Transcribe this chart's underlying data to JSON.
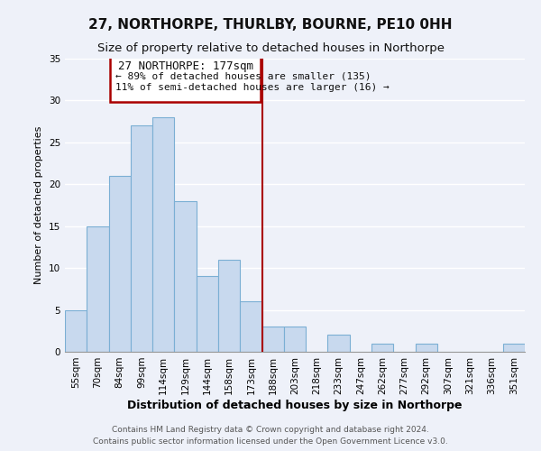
{
  "title": "27, NORTHORPE, THURLBY, BOURNE, PE10 0HH",
  "subtitle": "Size of property relative to detached houses in Northorpe",
  "xlabel": "Distribution of detached houses by size in Northorpe",
  "ylabel": "Number of detached properties",
  "footer_line1": "Contains HM Land Registry data © Crown copyright and database right 2024.",
  "footer_line2": "Contains public sector information licensed under the Open Government Licence v3.0.",
  "bar_labels": [
    "55sqm",
    "70sqm",
    "84sqm",
    "99sqm",
    "114sqm",
    "129sqm",
    "144sqm",
    "158sqm",
    "173sqm",
    "188sqm",
    "203sqm",
    "218sqm",
    "233sqm",
    "247sqm",
    "262sqm",
    "277sqm",
    "292sqm",
    "307sqm",
    "321sqm",
    "336sqm",
    "351sqm"
  ],
  "bar_values": [
    5,
    15,
    21,
    27,
    28,
    18,
    9,
    11,
    6,
    3,
    3,
    0,
    2,
    0,
    1,
    0,
    1,
    0,
    0,
    0,
    1
  ],
  "bar_color": "#c8d9ee",
  "bar_edge_color": "#7bafd4",
  "vline_x_index": 8.5,
  "vline_color": "#aa0000",
  "annotation_title": "27 NORTHORPE: 177sqm",
  "annotation_line2": "← 89% of detached houses are smaller (135)",
  "annotation_line3": "11% of semi-detached houses are larger (16) →",
  "annotation_box_color": "#ffffff",
  "annotation_box_edge_color": "#aa0000",
  "ylim": [
    0,
    35
  ],
  "yticks": [
    0,
    5,
    10,
    15,
    20,
    25,
    30,
    35
  ],
  "background_color": "#eef1f9",
  "grid_color": "#ffffff",
  "title_fontsize": 11,
  "subtitle_fontsize": 9.5,
  "xlabel_fontsize": 9,
  "ylabel_fontsize": 8,
  "tick_fontsize": 7.5,
  "annotation_title_fontsize": 9,
  "annotation_body_fontsize": 8,
  "footer_fontsize": 6.5
}
